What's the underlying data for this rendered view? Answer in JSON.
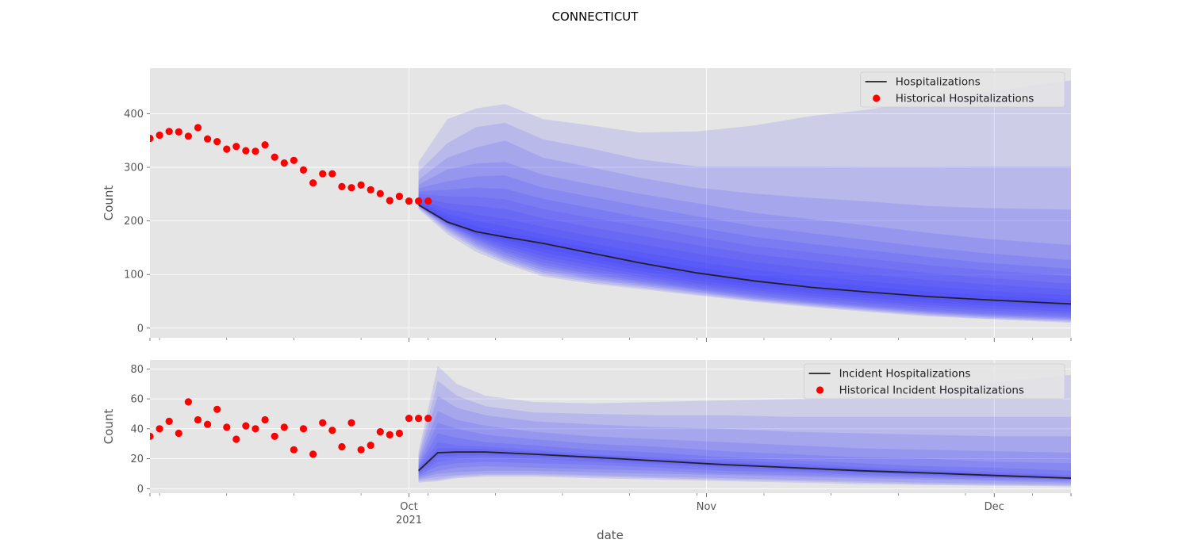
{
  "figure": {
    "title": "CONNECTICUT",
    "xlabel": "date"
  },
  "chart_data": [
    {
      "type": "line",
      "panel": "top",
      "ylabel": "Count",
      "ylim": [
        -18,
        485
      ],
      "yticks": [
        0,
        100,
        200,
        300,
        400
      ],
      "xlim": [
        "2021-09-04",
        "2021-12-09"
      ],
      "grid": true,
      "legend_position": "top-right",
      "legend": [
        "Hospitalizations",
        "Historical Hospitalizations"
      ],
      "series": [
        {
          "name": "Historical Hospitalizations",
          "kind": "scatter",
          "color": "#ff0000",
          "x": [
            "2021-09-04",
            "2021-09-05",
            "2021-09-06",
            "2021-09-07",
            "2021-09-08",
            "2021-09-09",
            "2021-09-10",
            "2021-09-11",
            "2021-09-12",
            "2021-09-13",
            "2021-09-14",
            "2021-09-15",
            "2021-09-16",
            "2021-09-17",
            "2021-09-18",
            "2021-09-19",
            "2021-09-20",
            "2021-09-21",
            "2021-09-22",
            "2021-09-23",
            "2021-09-24",
            "2021-09-25",
            "2021-09-26",
            "2021-09-27",
            "2021-09-28",
            "2021-09-29",
            "2021-09-30",
            "2021-10-01",
            "2021-10-02",
            "2021-10-03"
          ],
          "y": [
            354,
            360,
            367,
            366,
            358,
            374,
            353,
            348,
            334,
            339,
            331,
            330,
            342,
            319,
            308,
            313,
            295,
            271,
            288,
            288,
            264,
            262,
            267,
            258,
            251,
            238,
            246,
            237,
            237,
            237
          ]
        },
        {
          "name": "Hospitalizations",
          "kind": "line",
          "color": "#222222",
          "x": [
            "2021-10-02",
            "2021-10-05",
            "2021-10-08",
            "2021-10-11",
            "2021-10-15",
            "2021-10-20",
            "2021-10-25",
            "2021-10-31",
            "2021-11-06",
            "2021-11-12",
            "2021-11-18",
            "2021-11-24",
            "2021-11-30",
            "2021-12-09"
          ],
          "y": [
            230,
            198,
            180,
            170,
            158,
            140,
            122,
            103,
            88,
            76,
            67,
            59,
            53,
            45
          ]
        }
      ],
      "bands": [
        {
          "lower": [
            222,
            175,
            142,
            120,
            96,
            83,
            73,
            61,
            49,
            39,
            30,
            22,
            17,
            10
          ],
          "upper": [
            310,
            390,
            410,
            418,
            390,
            378,
            365,
            367,
            378,
            396,
            408,
            425,
            440,
            462
          ]
        },
        {
          "lower": [
            224,
            180,
            148,
            124,
            100,
            86,
            76,
            63,
            51,
            41,
            32,
            24,
            18,
            12
          ],
          "upper": [
            292,
            345,
            375,
            383,
            352,
            335,
            315,
            302,
            302,
            302,
            301,
            301,
            302,
            302
          ]
        },
        {
          "lower": [
            226,
            184,
            152,
            128,
            104,
            90,
            79,
            66,
            53,
            43,
            34,
            26,
            20,
            14
          ],
          "upper": [
            277,
            318,
            337,
            350,
            318,
            300,
            281,
            262,
            251,
            243,
            236,
            228,
            224,
            221
          ]
        },
        {
          "lower": [
            227,
            187,
            156,
            132,
            108,
            93,
            82,
            68,
            55,
            45,
            36,
            28,
            22,
            16
          ],
          "upper": [
            268,
            296,
            307,
            310,
            286,
            268,
            251,
            233,
            215,
            203,
            191,
            178,
            167,
            155
          ]
        },
        {
          "lower": [
            228,
            190,
            160,
            136,
            113,
            97,
            85,
            71,
            57,
            47,
            38,
            30,
            24,
            18
          ],
          "upper": [
            261,
            274,
            283,
            285,
            262,
            245,
            228,
            209,
            190,
            177,
            164,
            151,
            140,
            127
          ]
        },
        {
          "lower": [
            228,
            192,
            164,
            141,
            117,
            101,
            88,
            73,
            60,
            49,
            40,
            32,
            26,
            20
          ],
          "upper": [
            255,
            258,
            262,
            260,
            241,
            224,
            207,
            188,
            170,
            157,
            145,
            133,
            122,
            111
          ]
        },
        {
          "lower": [
            229,
            194,
            167,
            145,
            122,
            106,
            92,
            76,
            63,
            52,
            43,
            35,
            29,
            23
          ],
          "upper": [
            250,
            246,
            245,
            240,
            222,
            206,
            190,
            171,
            153,
            141,
            129,
            118,
            108,
            97
          ]
        },
        {
          "lower": [
            229,
            195,
            170,
            150,
            128,
            111,
            96,
            80,
            67,
            56,
            47,
            39,
            33,
            27
          ],
          "upper": [
            245,
            233,
            228,
            222,
            205,
            188,
            173,
            155,
            138,
            126,
            114,
            103,
            94,
            83
          ]
        },
        {
          "lower": [
            229,
            196,
            173,
            155,
            134,
            117,
            101,
            84,
            71,
            60,
            51,
            43,
            37,
            31
          ],
          "upper": [
            240,
            222,
            212,
            204,
            189,
            172,
            157,
            139,
            123,
            111,
            100,
            90,
            82,
            72
          ]
        },
        {
          "lower": [
            230,
            197,
            175,
            160,
            141,
            124,
            107,
            89,
            76,
            65,
            56,
            48,
            42,
            36
          ],
          "upper": [
            236,
            213,
            200,
            190,
            175,
            158,
            142,
            124,
            109,
            97,
            87,
            78,
            70,
            61
          ]
        },
        {
          "lower": [
            230,
            197,
            177,
            164,
            148,
            130,
            113,
            95,
            81,
            70,
            61,
            53,
            47,
            40
          ],
          "upper": [
            233,
            206,
            190,
            179,
            166,
            149,
            132,
            113,
            98,
            87,
            77,
            68,
            61,
            53
          ]
        }
      ]
    },
    {
      "type": "line",
      "panel": "bottom",
      "ylabel": "Count",
      "ylim": [
        -3,
        86
      ],
      "yticks": [
        0,
        20,
        40,
        60,
        80
      ],
      "xlim": [
        "2021-09-04",
        "2021-12-09"
      ],
      "grid": true,
      "legend_position": "top-right",
      "legend": [
        "Incident Hospitalizations",
        "Historical Incident Hospitalizations"
      ],
      "xticks_major": [
        {
          "date": "2021-10-01",
          "label": "Oct",
          "sublabel": "2021"
        },
        {
          "date": "2021-11-01",
          "label": "Nov",
          "sublabel": ""
        },
        {
          "date": "2021-12-01",
          "label": "Dec",
          "sublabel": ""
        }
      ],
      "series": [
        {
          "name": "Historical Incident Hospitalizations",
          "kind": "scatter",
          "color": "#ff0000",
          "x": [
            "2021-09-04",
            "2021-09-05",
            "2021-09-06",
            "2021-09-07",
            "2021-09-08",
            "2021-09-09",
            "2021-09-10",
            "2021-09-11",
            "2021-09-12",
            "2021-09-13",
            "2021-09-14",
            "2021-09-15",
            "2021-09-16",
            "2021-09-17",
            "2021-09-18",
            "2021-09-19",
            "2021-09-20",
            "2021-09-21",
            "2021-09-22",
            "2021-09-23",
            "2021-09-24",
            "2021-09-25",
            "2021-09-26",
            "2021-09-27",
            "2021-09-28",
            "2021-09-29",
            "2021-09-30",
            "2021-10-01",
            "2021-10-02",
            "2021-10-03"
          ],
          "y": [
            35,
            40,
            45,
            37,
            58,
            46,
            43,
            53,
            41,
            33,
            42,
            40,
            46,
            35,
            41,
            26,
            40,
            23,
            44,
            39,
            28,
            44,
            26,
            29,
            38,
            36,
            37,
            47,
            47,
            47
          ]
        },
        {
          "name": "Incident Hospitalizations",
          "kind": "line",
          "color": "#222222",
          "x": [
            "2021-10-02",
            "2021-10-04",
            "2021-10-06",
            "2021-10-09",
            "2021-10-14",
            "2021-10-20",
            "2021-10-27",
            "2021-11-03",
            "2021-11-10",
            "2021-11-17",
            "2021-11-24",
            "2021-12-01",
            "2021-12-09"
          ],
          "y": [
            12,
            24,
            24.5,
            24.5,
            23,
            21,
            18.5,
            16,
            14,
            12,
            10.5,
            8.8,
            7
          ]
        }
      ],
      "bands": [
        {
          "lower": [
            4,
            5,
            7,
            8,
            8,
            7,
            6,
            5,
            4,
            3,
            2.5,
            2,
            1.5
          ],
          "upper": [
            25,
            82,
            70,
            62,
            58,
            57,
            58,
            59,
            60,
            61,
            65,
            71,
            76
          ]
        },
        {
          "lower": [
            5,
            6,
            8,
            9,
            9,
            8,
            7,
            6,
            5,
            4,
            3,
            2.5,
            2
          ],
          "upper": [
            22,
            72,
            62,
            55,
            51,
            50,
            49,
            49,
            48,
            48,
            48,
            48,
            48
          ]
        },
        {
          "lower": [
            6,
            8,
            9,
            10,
            10,
            9,
            8,
            7,
            6,
            5,
            4,
            3.5,
            3
          ],
          "upper": [
            20,
            62,
            54,
            49,
            45,
            43,
            41,
            40,
            38,
            37,
            36,
            35,
            35
          ]
        },
        {
          "lower": [
            7,
            10,
            11,
            12,
            12,
            11,
            10,
            9,
            8,
            7,
            6,
            5,
            4
          ],
          "upper": [
            18,
            52,
            46,
            42,
            38,
            35,
            33,
            31,
            29,
            27,
            26,
            25,
            24
          ]
        },
        {
          "lower": [
            8,
            12,
            14,
            15,
            14,
            13,
            12,
            10,
            9,
            8,
            7,
            6,
            5
          ],
          "upper": [
            16,
            44,
            40,
            36,
            33,
            30,
            28,
            25,
            23,
            21,
            20,
            18,
            17
          ]
        },
        {
          "lower": [
            9,
            15,
            17,
            18,
            17,
            16,
            14,
            12,
            11,
            9,
            8,
            7,
            6
          ],
          "upper": [
            15,
            37,
            34,
            31,
            29,
            26,
            24,
            21,
            19,
            17,
            15,
            14,
            12
          ]
        },
        {
          "lower": [
            10,
            18,
            20,
            21,
            20,
            18,
            16,
            14,
            12,
            10.5,
            9,
            7.5,
            6
          ],
          "upper": [
            14,
            31,
            29,
            28,
            26,
            23,
            21,
            19,
            17,
            14.5,
            12.5,
            11,
            9
          ]
        },
        {
          "lower": [
            11,
            21,
            22,
            22.5,
            21.5,
            19.5,
            17,
            15,
            13,
            11,
            9.5,
            8,
            6.5
          ],
          "upper": [
            13,
            27,
            27,
            26.5,
            24.5,
            22.5,
            20,
            17.5,
            15.5,
            13.5,
            11.5,
            9.8,
            8
          ]
        }
      ]
    }
  ],
  "colors": {
    "panel_background": "#e5e5e5",
    "grid": "#ffffff",
    "band": "#2f2fff",
    "line": "#222222",
    "points": "#ff0000"
  }
}
